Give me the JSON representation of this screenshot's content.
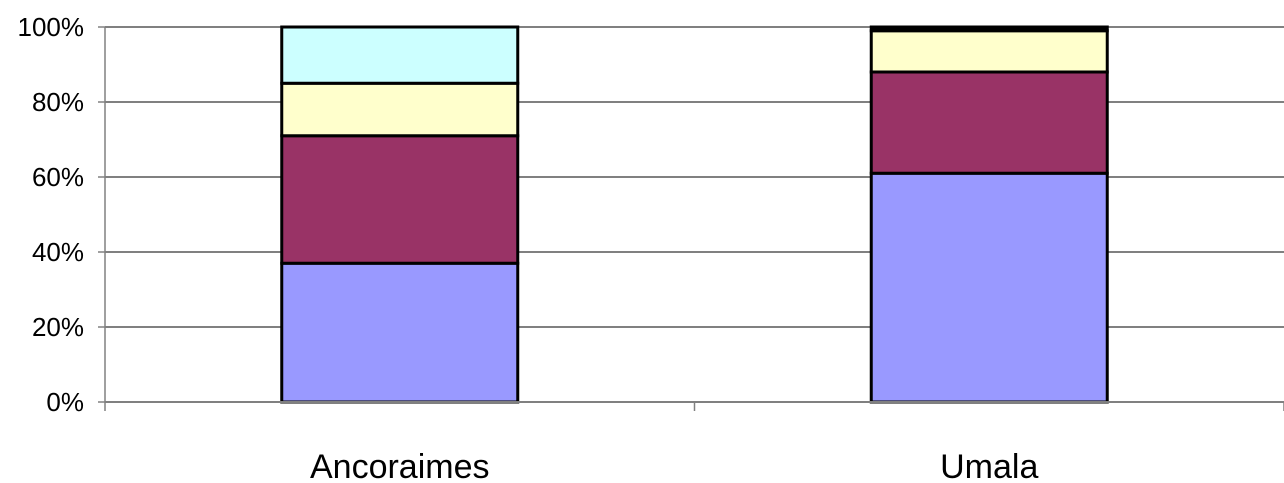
{
  "chart_data": {
    "type": "bar",
    "stacked": true,
    "percent_stacked": true,
    "categories": [
      "Ancoraimes",
      "Umala"
    ],
    "series": [
      {
        "color": "#9999ff",
        "values": [
          37,
          61
        ]
      },
      {
        "color": "#993366",
        "values": [
          34,
          27
        ]
      },
      {
        "color": "#ffffcc",
        "values": [
          14,
          11
        ]
      },
      {
        "color": "#ccffff",
        "values": [
          15,
          0
        ]
      },
      {
        "color": "#000000",
        "values": [
          0,
          1
        ]
      }
    ],
    "ylim": [
      0,
      100
    ],
    "yticks": [
      "0%",
      "20%",
      "40%",
      "60%",
      "80%",
      "100%"
    ],
    "grid": true,
    "legend": "none",
    "colors": {
      "gridline": "#000000",
      "axis": "#808080",
      "bar_outline": "#000000"
    }
  }
}
